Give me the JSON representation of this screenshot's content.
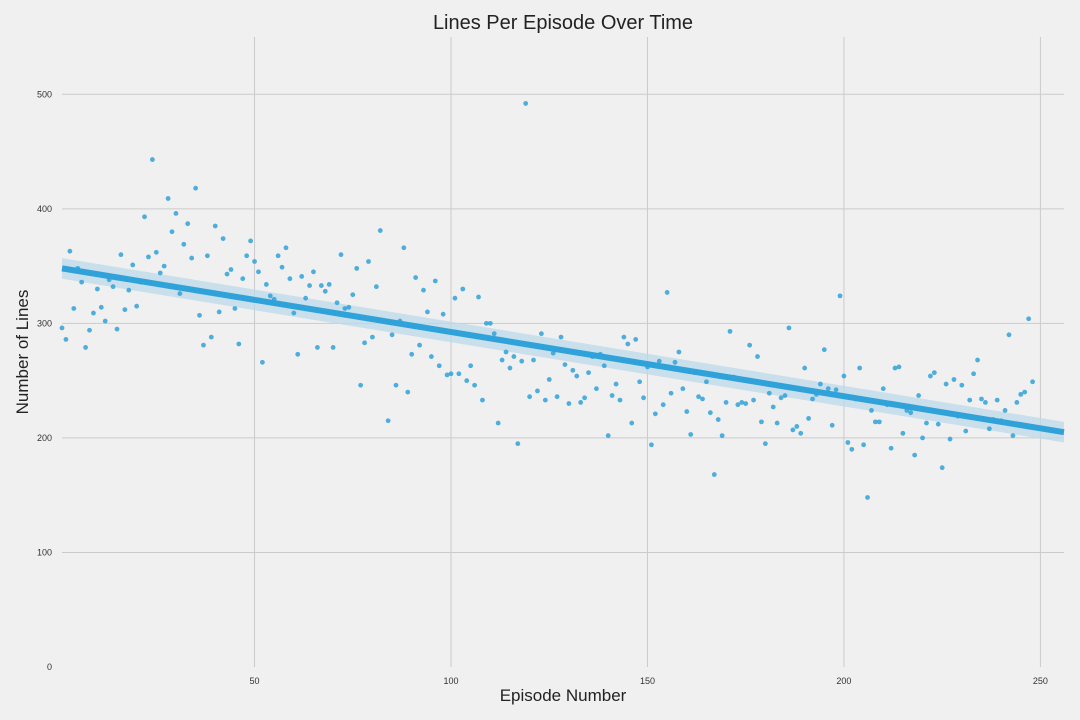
{
  "chart_data": {
    "type": "scatter",
    "title": "Lines Per Episode Over Time",
    "xlabel": "Episode Number",
    "ylabel": "Number of Lines",
    "xlim": [
      1,
      256
    ],
    "ylim": [
      0,
      550
    ],
    "xticks": [
      50,
      100,
      150,
      200,
      250
    ],
    "yticks": [
      0,
      100,
      200,
      300,
      400,
      500
    ],
    "grid": true,
    "colors": {
      "points": "#30a2da",
      "fit_line": "#30a2da",
      "ci_band": "#bcd9ea",
      "background": "#f0f0f0",
      "grid": "#cbcbcb"
    },
    "regression": {
      "x": [
        1,
        256
      ],
      "y": [
        348,
        205
      ],
      "ci_halfwidth": 9
    },
    "points": [
      [
        1,
        296
      ],
      [
        2,
        286
      ],
      [
        3,
        363
      ],
      [
        4,
        313
      ],
      [
        5,
        348
      ],
      [
        6,
        336
      ],
      [
        7,
        279
      ],
      [
        8,
        294
      ],
      [
        9,
        309
      ],
      [
        10,
        330
      ],
      [
        11,
        314
      ],
      [
        12,
        302
      ],
      [
        13,
        338
      ],
      [
        14,
        332
      ],
      [
        15,
        295
      ],
      [
        16,
        360
      ],
      [
        17,
        312
      ],
      [
        18,
        329
      ],
      [
        19,
        351
      ],
      [
        20,
        315
      ],
      [
        21,
        336
      ],
      [
        22,
        393
      ],
      [
        23,
        358
      ],
      [
        24,
        443
      ],
      [
        25,
        362
      ],
      [
        26,
        344
      ],
      [
        27,
        350
      ],
      [
        28,
        409
      ],
      [
        29,
        380
      ],
      [
        30,
        396
      ],
      [
        31,
        326
      ],
      [
        32,
        369
      ],
      [
        33,
        387
      ],
      [
        34,
        357
      ],
      [
        35,
        418
      ],
      [
        36,
        307
      ],
      [
        37,
        281
      ],
      [
        38,
        359
      ],
      [
        39,
        288
      ],
      [
        40,
        385
      ],
      [
        41,
        310
      ],
      [
        42,
        374
      ],
      [
        43,
        343
      ],
      [
        44,
        347
      ],
      [
        45,
        313
      ],
      [
        46,
        282
      ],
      [
        47,
        339
      ],
      [
        48,
        359
      ],
      [
        49,
        372
      ],
      [
        50,
        354
      ],
      [
        51,
        345
      ],
      [
        52,
        266
      ],
      [
        53,
        334
      ],
      [
        54,
        324
      ],
      [
        55,
        321
      ],
      [
        56,
        359
      ],
      [
        57,
        349
      ],
      [
        58,
        366
      ],
      [
        59,
        339
      ],
      [
        60,
        309
      ],
      [
        61,
        273
      ],
      [
        62,
        341
      ],
      [
        63,
        322
      ],
      [
        64,
        333
      ],
      [
        65,
        345
      ],
      [
        66,
        279
      ],
      [
        67,
        333
      ],
      [
        68,
        328
      ],
      [
        69,
        334
      ],
      [
        70,
        279
      ],
      [
        71,
        318
      ],
      [
        72,
        360
      ],
      [
        73,
        313
      ],
      [
        74,
        314
      ],
      [
        75,
        325
      ],
      [
        76,
        348
      ],
      [
        77,
        246
      ],
      [
        78,
        283
      ],
      [
        79,
        354
      ],
      [
        80,
        288
      ],
      [
        81,
        332
      ],
      [
        82,
        381
      ],
      [
        83,
        302
      ],
      [
        84,
        215
      ],
      [
        85,
        290
      ],
      [
        86,
        246
      ],
      [
        87,
        302
      ],
      [
        88,
        366
      ],
      [
        89,
        240
      ],
      [
        90,
        273
      ],
      [
        91,
        340
      ],
      [
        92,
        281
      ],
      [
        93,
        329
      ],
      [
        94,
        310
      ],
      [
        95,
        271
      ],
      [
        96,
        337
      ],
      [
        97,
        263
      ],
      [
        98,
        308
      ],
      [
        99,
        255
      ],
      [
        100,
        256
      ],
      [
        101,
        322
      ],
      [
        102,
        256
      ],
      [
        103,
        330
      ],
      [
        104,
        250
      ],
      [
        105,
        263
      ],
      [
        106,
        246
      ],
      [
        107,
        323
      ],
      [
        108,
        233
      ],
      [
        109,
        300
      ],
      [
        110,
        300
      ],
      [
        111,
        291
      ],
      [
        112,
        213
      ],
      [
        113,
        268
      ],
      [
        114,
        275
      ],
      [
        115,
        261
      ],
      [
        116,
        271
      ],
      [
        117,
        195
      ],
      [
        118,
        267
      ],
      [
        119,
        492
      ],
      [
        120,
        236
      ],
      [
        121,
        268
      ],
      [
        122,
        241
      ],
      [
        123,
        291
      ],
      [
        124,
        233
      ],
      [
        125,
        251
      ],
      [
        126,
        274
      ],
      [
        127,
        236
      ],
      [
        128,
        288
      ],
      [
        129,
        264
      ],
      [
        130,
        230
      ],
      [
        131,
        259
      ],
      [
        132,
        254
      ],
      [
        133,
        231
      ],
      [
        134,
        235
      ],
      [
        135,
        257
      ],
      [
        136,
        271
      ],
      [
        137,
        243
      ],
      [
        138,
        273
      ],
      [
        139,
        263
      ],
      [
        140,
        202
      ],
      [
        141,
        237
      ],
      [
        142,
        247
      ],
      [
        143,
        233
      ],
      [
        144,
        288
      ],
      [
        145,
        282
      ],
      [
        146,
        213
      ],
      [
        147,
        286
      ],
      [
        148,
        249
      ],
      [
        149,
        235
      ],
      [
        150,
        262
      ],
      [
        151,
        194
      ],
      [
        152,
        221
      ],
      [
        153,
        267
      ],
      [
        154,
        229
      ],
      [
        155,
        327
      ],
      [
        156,
        239
      ],
      [
        157,
        266
      ],
      [
        158,
        275
      ],
      [
        159,
        243
      ],
      [
        160,
        223
      ],
      [
        161,
        203
      ],
      [
        162,
        257
      ],
      [
        163,
        236
      ],
      [
        164,
        234
      ],
      [
        165,
        249
      ],
      [
        166,
        222
      ],
      [
        167,
        168
      ],
      [
        168,
        216
      ],
      [
        169,
        202
      ],
      [
        170,
        231
      ],
      [
        171,
        293
      ],
      [
        172,
        253
      ],
      [
        173,
        229
      ],
      [
        174,
        231
      ],
      [
        175,
        230
      ],
      [
        176,
        281
      ],
      [
        177,
        233
      ],
      [
        178,
        271
      ],
      [
        179,
        214
      ],
      [
        180,
        195
      ],
      [
        181,
        239
      ],
      [
        182,
        227
      ],
      [
        183,
        213
      ],
      [
        184,
        235
      ],
      [
        185,
        237
      ],
      [
        186,
        296
      ],
      [
        187,
        207
      ],
      [
        188,
        210
      ],
      [
        189,
        204
      ],
      [
        190,
        261
      ],
      [
        191,
        217
      ],
      [
        192,
        234
      ],
      [
        193,
        238
      ],
      [
        194,
        247
      ],
      [
        195,
        277
      ],
      [
        196,
        243
      ],
      [
        197,
        211
      ],
      [
        198,
        242
      ],
      [
        199,
        324
      ],
      [
        200,
        254
      ],
      [
        201,
        196
      ],
      [
        202,
        190
      ],
      [
        203,
        234
      ],
      [
        204,
        261
      ],
      [
        205,
        194
      ],
      [
        206,
        148
      ],
      [
        207,
        224
      ],
      [
        208,
        214
      ],
      [
        209,
        214
      ],
      [
        210,
        243
      ],
      [
        211,
        229
      ],
      [
        212,
        191
      ],
      [
        213,
        261
      ],
      [
        214,
        262
      ],
      [
        215,
        204
      ],
      [
        216,
        224
      ],
      [
        217,
        222
      ],
      [
        218,
        185
      ],
      [
        219,
        237
      ],
      [
        220,
        200
      ],
      [
        221,
        213
      ],
      [
        222,
        254
      ],
      [
        223,
        257
      ],
      [
        224,
        212
      ],
      [
        225,
        174
      ],
      [
        226,
        247
      ],
      [
        227,
        199
      ],
      [
        228,
        251
      ],
      [
        229,
        219
      ],
      [
        230,
        246
      ],
      [
        231,
        206
      ],
      [
        232,
        233
      ],
      [
        233,
        256
      ],
      [
        234,
        268
      ],
      [
        235,
        234
      ],
      [
        236,
        231
      ],
      [
        237,
        208
      ],
      [
        238,
        216
      ],
      [
        239,
        233
      ],
      [
        240,
        215
      ],
      [
        241,
        224
      ],
      [
        242,
        290
      ],
      [
        243,
        202
      ],
      [
        244,
        231
      ],
      [
        245,
        238
      ],
      [
        246,
        240
      ],
      [
        247,
        304
      ],
      [
        248,
        249
      ]
    ]
  }
}
